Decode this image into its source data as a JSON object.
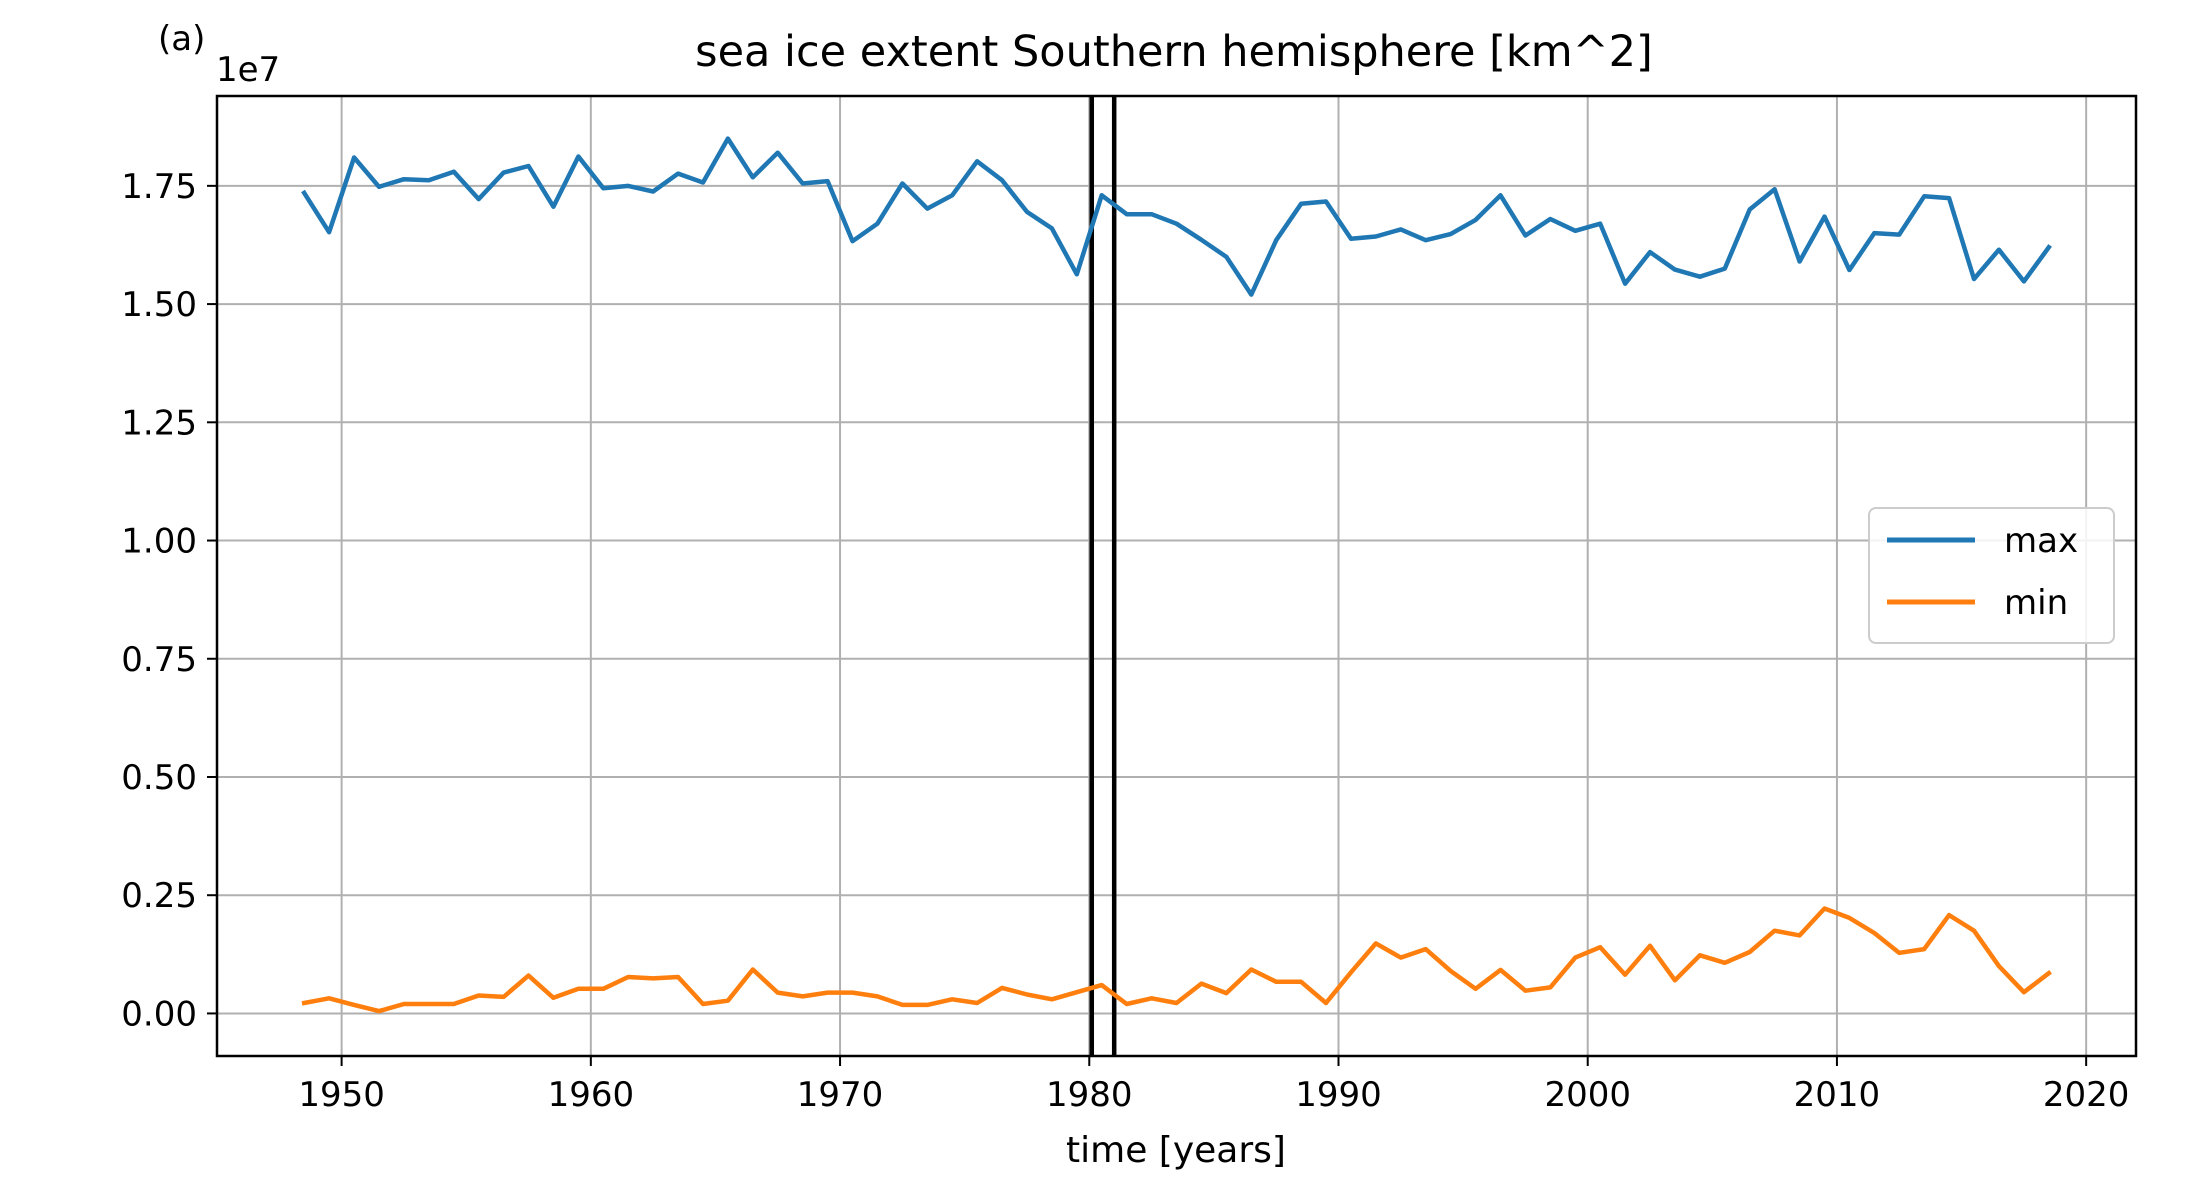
{
  "chart_data": {
    "type": "line",
    "panel_label": "(a)",
    "title": "sea ice extent Southern hemisphere [km^2]",
    "xlabel": "time [years]",
    "ylabel": "",
    "y_offset_label": "1e7",
    "xlim": [
      1945,
      2022
    ],
    "ylim": [
      -0.09,
      1.94
    ],
    "x_ticks": [
      1950,
      1960,
      1970,
      1980,
      1990,
      2000,
      2010,
      2020
    ],
    "y_ticks": [
      0,
      0.25,
      0.5,
      0.75,
      1.0,
      1.25,
      1.5,
      1.75
    ],
    "y_tick_labels": [
      "0.00",
      "0.25",
      "0.50",
      "0.75",
      "1.00",
      "1.25",
      "1.50",
      "1.75"
    ],
    "grid": true,
    "legend_position": "center-right",
    "vertical_lines": [
      1980.1,
      1981
    ],
    "x": [
      1948.5,
      1949.5,
      1950.5,
      1951.5,
      1952.5,
      1953.5,
      1954.5,
      1955.5,
      1956.5,
      1957.5,
      1958.5,
      1959.5,
      1960.5,
      1961.5,
      1962.5,
      1963.5,
      1964.5,
      1965.5,
      1966.5,
      1967.5,
      1968.5,
      1969.5,
      1970.5,
      1971.5,
      1972.5,
      1973.5,
      1974.5,
      1975.5,
      1976.5,
      1977.5,
      1978.5,
      1979.5,
      1980.5,
      1981.5,
      1982.5,
      1983.5,
      1984.5,
      1985.5,
      1986.5,
      1987.5,
      1988.5,
      1989.5,
      1990.5,
      1991.5,
      1992.5,
      1993.5,
      1994.5,
      1995.5,
      1996.5,
      1997.5,
      1998.5,
      1999.5,
      2000.5,
      2001.5,
      2002.5,
      2003.5,
      2004.5,
      2005.5,
      2006.5,
      2007.5,
      2008.5,
      2009.5,
      2010.5,
      2011.5,
      2012.5,
      2013.5,
      2014.5,
      2015.5,
      2016.5,
      2017.5,
      2018.5
    ],
    "series": [
      {
        "name": "max",
        "color": "#1f77b4",
        "values": [
          1.735,
          1.652,
          1.81,
          1.748,
          1.764,
          1.762,
          1.78,
          1.722,
          1.778,
          1.792,
          1.706,
          1.812,
          1.745,
          1.75,
          1.738,
          1.776,
          1.757,
          1.85,
          1.768,
          1.82,
          1.755,
          1.76,
          1.633,
          1.67,
          1.755,
          1.702,
          1.73,
          1.802,
          1.762,
          1.695,
          1.66,
          1.563,
          1.73,
          1.69,
          1.69,
          1.67,
          1.636,
          1.6,
          1.52,
          1.635,
          1.712,
          1.717,
          1.638,
          1.643,
          1.658,
          1.635,
          1.648,
          1.678,
          1.73,
          1.645,
          1.68,
          1.655,
          1.67,
          1.543,
          1.61,
          1.573,
          1.558,
          1.575,
          1.7,
          1.743,
          1.59,
          1.685,
          1.572,
          1.65,
          1.647,
          1.728,
          1.724,
          1.553,
          1.615,
          1.548,
          1.62
        ]
      },
      {
        "name": "min",
        "color": "#ff7f0e",
        "values": [
          0.022,
          0.032,
          0.018,
          0.005,
          0.02,
          0.02,
          0.02,
          0.038,
          0.035,
          0.08,
          0.033,
          0.052,
          0.052,
          0.077,
          0.074,
          0.077,
          0.02,
          0.027,
          0.093,
          0.044,
          0.036,
          0.044,
          0.044,
          0.036,
          0.018,
          0.018,
          0.03,
          0.022,
          0.054,
          0.04,
          0.03,
          0.045,
          0.06,
          0.02,
          0.032,
          0.022,
          0.063,
          0.043,
          0.093,
          0.067,
          0.067,
          0.022,
          0.087,
          0.148,
          0.118,
          0.136,
          0.09,
          0.052,
          0.092,
          0.048,
          0.055,
          0.118,
          0.14,
          0.082,
          0.143,
          0.07,
          0.123,
          0.107,
          0.13,
          0.175,
          0.165,
          0.222,
          0.202,
          0.17,
          0.128,
          0.136,
          0.208,
          0.175,
          0.1,
          0.045,
          0.085
        ]
      }
    ]
  }
}
